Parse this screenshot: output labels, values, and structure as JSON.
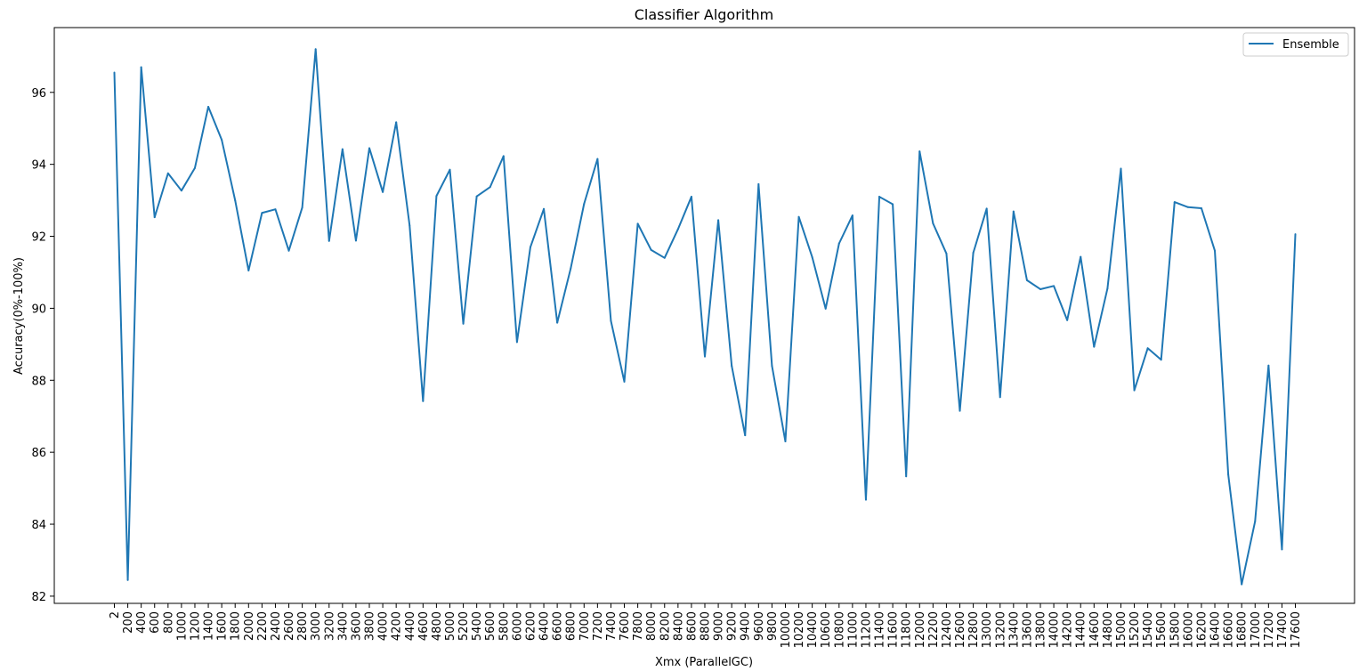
{
  "chart_data": {
    "type": "line",
    "title": "Classifier Algorithm",
    "xlabel": "Xmx (ParallelGC)",
    "ylabel": "Accuracy(0%-100%)",
    "ylim": [
      81.8,
      97.8
    ],
    "yticks": [
      82,
      84,
      86,
      88,
      90,
      92,
      94,
      96
    ],
    "ytick_labels": [
      "82",
      "84",
      "86",
      "88",
      "90",
      "92",
      "94",
      "96"
    ],
    "grid": false,
    "legend_position": "top-right",
    "line_color": "#1f77b4",
    "x": [
      "2",
      "200",
      "400",
      "600",
      "800",
      "1000",
      "1200",
      "1400",
      "1600",
      "1800",
      "2000",
      "2200",
      "2400",
      "2600",
      "2800",
      "3000",
      "3200",
      "3400",
      "3600",
      "3800",
      "4000",
      "4200",
      "4400",
      "4600",
      "4800",
      "5000",
      "5200",
      "5400",
      "5600",
      "5800",
      "6000",
      "6200",
      "6400",
      "6600",
      "6800",
      "7000",
      "7200",
      "7400",
      "7600",
      "7800",
      "8000",
      "8200",
      "8400",
      "8600",
      "8800",
      "9000",
      "9200",
      "9400",
      "9600",
      "9800",
      "10000",
      "10200",
      "10400",
      "10600",
      "10800",
      "11000",
      "11200",
      "11400",
      "11600",
      "11800",
      "12000",
      "12200",
      "12400",
      "12600",
      "12800",
      "13000",
      "13200",
      "13400",
      "13600",
      "13800",
      "14000",
      "14200",
      "14400",
      "14600",
      "14800",
      "15000",
      "15200",
      "15400",
      "15600",
      "15800",
      "16000",
      "16200",
      "16400",
      "16600",
      "16800",
      "17000",
      "17200",
      "17400",
      "17600"
    ],
    "series": [
      {
        "name": "Ensemble",
        "values": [
          96.55,
          82.45,
          96.7,
          92.53,
          93.75,
          93.27,
          93.9,
          95.6,
          94.68,
          93.0,
          91.05,
          92.65,
          92.75,
          91.6,
          92.8,
          97.2,
          91.87,
          94.42,
          91.88,
          94.45,
          93.23,
          95.17,
          92.3,
          87.42,
          93.12,
          93.85,
          89.57,
          93.11,
          93.37,
          94.23,
          89.06,
          91.7,
          92.76,
          89.6,
          91.1,
          92.9,
          94.15,
          89.65,
          87.96,
          92.35,
          91.62,
          91.4,
          92.2,
          93.1,
          88.66,
          92.45,
          88.4,
          86.47,
          93.45,
          88.4,
          86.3,
          92.54,
          91.42,
          89.99,
          91.8,
          92.58,
          84.68,
          93.1,
          92.89,
          85.33,
          94.36,
          92.36,
          91.52,
          87.15,
          91.54,
          92.77,
          87.53,
          92.69,
          90.78,
          90.53,
          90.62,
          89.67,
          91.43,
          88.93,
          90.55,
          93.88,
          87.72,
          88.89,
          88.57,
          92.95,
          92.81,
          92.78,
          91.6,
          85.38,
          82.33,
          84.08,
          88.41,
          83.3,
          92.06
        ]
      }
    ]
  }
}
